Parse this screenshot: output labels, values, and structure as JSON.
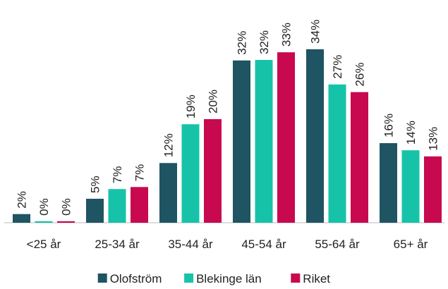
{
  "chart_data": {
    "type": "bar",
    "categories": [
      "<25 år",
      "25-34 år",
      "35-44 år",
      "45-54 år",
      "55-64 år",
      "65+ år"
    ],
    "series": [
      {
        "name": "Olofström",
        "color": "#1f5462",
        "values": [
          1.7,
          4.7,
          11.7,
          31.8,
          34,
          15.6
        ],
        "value_labels": [
          "2%",
          "5%",
          "12%",
          "32%",
          "34%",
          "16%"
        ]
      },
      {
        "name": "Blekinge län",
        "color": "#16c3a8",
        "values": [
          0.3,
          6.6,
          19.3,
          31.9,
          27.1,
          14.2
        ],
        "value_labels": [
          "0%",
          "7%",
          "19%",
          "32%",
          "27%",
          "14%"
        ]
      },
      {
        "name": "Riket",
        "color": "#c8084f",
        "values": [
          0.3,
          7.0,
          20.3,
          33.4,
          25.6,
          13.0
        ],
        "value_labels": [
          "0%",
          "7%",
          "20%",
          "33%",
          "26%",
          "13%"
        ]
      }
    ]
  }
}
